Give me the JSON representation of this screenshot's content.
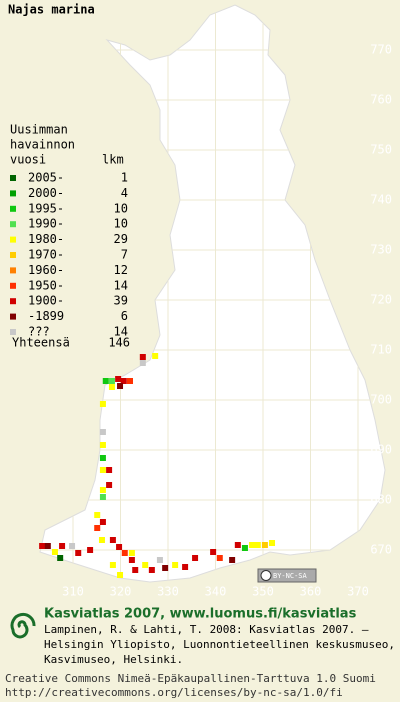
{
  "title": "Najas marina",
  "legend": {
    "heading": [
      "Uusimman",
      "havainnon",
      "vuosi"
    ],
    "count_heading": "lkm",
    "rows": [
      {
        "label": "2005-",
        "count": 1,
        "color": "#006400"
      },
      {
        "label": "2000-",
        "count": 4,
        "color": "#00a000"
      },
      {
        "label": "1995-",
        "count": 10,
        "color": "#10c810"
      },
      {
        "label": "1990-",
        "count": 10,
        "color": "#50e050"
      },
      {
        "label": "1980-",
        "count": 29,
        "color": "#ffff00"
      },
      {
        "label": "1970-",
        "count": 7,
        "color": "#ffcc00"
      },
      {
        "label": "1960-",
        "count": 12,
        "color": "#ff8000"
      },
      {
        "label": "1950-",
        "count": 14,
        "color": "#ff3000"
      },
      {
        "label": "1900-",
        "count": 39,
        "color": "#d00000"
      },
      {
        "label": "-1899",
        "count": 6,
        "color": "#800000"
      },
      {
        "label": "???",
        "count": 14,
        "color": "#c8c8c8"
      }
    ],
    "total_label": "Yhteensä",
    "total": 146
  },
  "map": {
    "xlim": [
      310,
      370
    ],
    "ylim": [
      670,
      770
    ],
    "xticks": [
      310,
      320,
      330,
      340,
      350,
      360,
      370
    ],
    "yticks": [
      670,
      680,
      690,
      700,
      710,
      720,
      730,
      740,
      750,
      760,
      770
    ]
  },
  "observations": [
    {
      "x": 324.7,
      "y": 708.6,
      "class": 8
    },
    {
      "x": 327.3,
      "y": 708.8,
      "class": 4
    },
    {
      "x": 324.7,
      "y": 707.4,
      "class": 10
    },
    {
      "x": 316.9,
      "y": 703.8,
      "class": 2
    },
    {
      "x": 318.2,
      "y": 703.8,
      "class": 3
    },
    {
      "x": 319.5,
      "y": 704.2,
      "class": 8
    },
    {
      "x": 320.7,
      "y": 703.8,
      "class": 8
    },
    {
      "x": 322.0,
      "y": 703.8,
      "class": 7
    },
    {
      "x": 318.2,
      "y": 702.6,
      "class": 4
    },
    {
      "x": 319.9,
      "y": 702.8,
      "class": 9
    },
    {
      "x": 316.3,
      "y": 699.2,
      "class": 4
    },
    {
      "x": 316.3,
      "y": 693.6,
      "class": 10
    },
    {
      "x": 316.3,
      "y": 691.0,
      "class": 4
    },
    {
      "x": 316.3,
      "y": 688.4,
      "class": 2
    },
    {
      "x": 316.3,
      "y": 686.0,
      "class": 4
    },
    {
      "x": 317.6,
      "y": 686.0,
      "class": 8
    },
    {
      "x": 316.3,
      "y": 682.0,
      "class": 4
    },
    {
      "x": 316.3,
      "y": 680.6,
      "class": 3
    },
    {
      "x": 317.6,
      "y": 683.0,
      "class": 8
    },
    {
      "x": 315.1,
      "y": 677.0,
      "class": 4
    },
    {
      "x": 316.3,
      "y": 675.6,
      "class": 8
    },
    {
      "x": 315.1,
      "y": 674.4,
      "class": 7
    },
    {
      "x": 303.5,
      "y": 670.8,
      "class": 8
    },
    {
      "x": 304.7,
      "y": 670.8,
      "class": 9
    },
    {
      "x": 306.2,
      "y": 669.6,
      "class": 4
    },
    {
      "x": 307.7,
      "y": 670.8,
      "class": 8
    },
    {
      "x": 309.8,
      "y": 670.8,
      "class": 10
    },
    {
      "x": 311.1,
      "y": 669.4,
      "class": 8
    },
    {
      "x": 307.3,
      "y": 668.4,
      "class": 0
    },
    {
      "x": 313.6,
      "y": 670.0,
      "class": 8
    },
    {
      "x": 316.1,
      "y": 672.0,
      "class": 4
    },
    {
      "x": 318.4,
      "y": 672.0,
      "class": 8
    },
    {
      "x": 319.7,
      "y": 670.6,
      "class": 8
    },
    {
      "x": 320.9,
      "y": 669.4,
      "class": 7
    },
    {
      "x": 322.4,
      "y": 669.4,
      "class": 4
    },
    {
      "x": 322.4,
      "y": 668.0,
      "class": 8
    },
    {
      "x": 318.4,
      "y": 667.0,
      "class": 4
    },
    {
      "x": 319.9,
      "y": 665.0,
      "class": 4
    },
    {
      "x": 323.1,
      "y": 666.0,
      "class": 8
    },
    {
      "x": 325.2,
      "y": 667.0,
      "class": 4
    },
    {
      "x": 326.6,
      "y": 666.0,
      "class": 8
    },
    {
      "x": 329.4,
      "y": 666.4,
      "class": 9
    },
    {
      "x": 331.5,
      "y": 667.0,
      "class": 4
    },
    {
      "x": 333.6,
      "y": 666.6,
      "class": 8
    },
    {
      "x": 335.7,
      "y": 668.4,
      "class": 8
    },
    {
      "x": 339.5,
      "y": 669.6,
      "class": 8
    },
    {
      "x": 340.9,
      "y": 668.4,
      "class": 7
    },
    {
      "x": 344.7,
      "y": 671.0,
      "class": 8
    },
    {
      "x": 346.2,
      "y": 670.4,
      "class": 2
    },
    {
      "x": 347.7,
      "y": 671.0,
      "class": 4
    },
    {
      "x": 348.9,
      "y": 671.0,
      "class": 4
    },
    {
      "x": 350.4,
      "y": 671.0,
      "class": 5
    },
    {
      "x": 351.9,
      "y": 671.4,
      "class": 4
    },
    {
      "x": 343.5,
      "y": 668.0,
      "class": 9
    },
    {
      "x": 328.3,
      "y": 668.0,
      "class": 10
    }
  ],
  "license_badge": "BY-NC-SA",
  "footer": {
    "brand": "Kasviatlas 2007, www.luomus.fi/kasviatlas",
    "citation": [
      "Lampinen, R. & Lahti, T. 2008: Kasviatlas 2007. –",
      "Helsingin Yliopisto, Luonnontieteellinen keskusmuseo,",
      "Kasvimuseo, Helsinki."
    ],
    "license": [
      "Creative Commons Nimeä-Epäkaupallinen-Tarttuva 1.0 Suomi",
      "http://creativecommons.org/licenses/by-nc-sa/1.0/fi"
    ]
  }
}
